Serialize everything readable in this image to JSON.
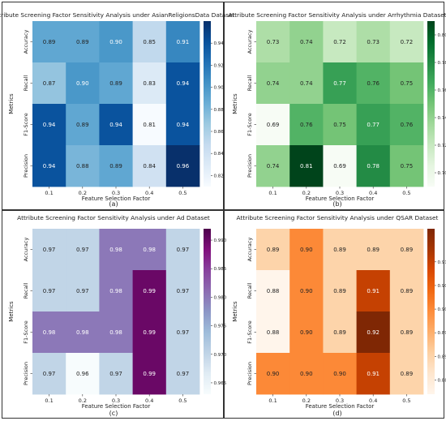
{
  "figure": {
    "captions": [
      "(a)",
      "(b)",
      "(c)",
      "(d)"
    ]
  },
  "chart_data": [
    {
      "type": "heatmap",
      "title": "Attribute Screening Factor Sensitivity Analysis under AsianReligionsData Dataset",
      "xlabel": "Feature Selection Factor",
      "ylabel": "Metrics",
      "x_categories": [
        "0.1",
        "0.2",
        "0.3",
        "0.4",
        "0.5"
      ],
      "y_categories": [
        "Accuracy",
        "Recall",
        "F1-Score",
        "Precision"
      ],
      "values": [
        [
          0.89,
          0.89,
          0.9,
          0.85,
          0.91
        ],
        [
          0.87,
          0.9,
          0.89,
          0.83,
          0.94
        ],
        [
          0.94,
          0.89,
          0.94,
          0.81,
          0.94
        ],
        [
          0.94,
          0.88,
          0.89,
          0.84,
          0.96
        ]
      ],
      "colormap": "Blues",
      "vmin": 0.81,
      "vmax": 0.96,
      "colorbar_ticks": [
        "0.94",
        "0.92",
        "0.90",
        "0.88",
        "0.86",
        "0.84",
        "0.82"
      ]
    },
    {
      "type": "heatmap",
      "title": "Attribute Screening Factor Sensitivity Analysis under Arrhythmia Dataset",
      "xlabel": "Feature Selection Factor",
      "ylabel": "Metrics",
      "x_categories": [
        "0.1",
        "0.2",
        "0.3",
        "0.4",
        "0.5"
      ],
      "y_categories": [
        "Accuracy",
        "Recall",
        "F1-Score",
        "Precision"
      ],
      "values": [
        [
          0.73,
          0.74,
          0.72,
          0.73,
          0.72
        ],
        [
          0.74,
          0.74,
          0.77,
          0.76,
          0.75
        ],
        [
          0.69,
          0.76,
          0.75,
          0.77,
          0.76
        ],
        [
          0.74,
          0.81,
          0.69,
          0.78,
          0.75
        ]
      ],
      "colormap": "Greens",
      "vmin": 0.69,
      "vmax": 0.81,
      "colorbar_ticks": [
        "0.80",
        "0.78",
        "0.76",
        "0.74",
        "0.72",
        "0.70"
      ]
    },
    {
      "type": "heatmap",
      "title": "Attribute Screening Factor Sensitivity Analysis under Ad Dataset",
      "xlabel": "Feature Selection Factor",
      "ylabel": "Metrics",
      "x_categories": [
        "0.1",
        "0.2",
        "0.3",
        "0.4",
        "0.5"
      ],
      "y_categories": [
        "Accuracy",
        "Recall",
        "F1-Score",
        "Precision"
      ],
      "values": [
        [
          0.97,
          0.97,
          0.98,
          0.98,
          0.97
        ],
        [
          0.97,
          0.97,
          0.98,
          0.99,
          0.97
        ],
        [
          0.98,
          0.98,
          0.98,
          0.99,
          0.97
        ],
        [
          0.97,
          0.96,
          0.97,
          0.99,
          0.97
        ]
      ],
      "colormap": "BuPu",
      "vmin": 0.963,
      "vmax": 0.992,
      "colorbar_ticks": [
        "0.990",
        "0.985",
        "0.980",
        "0.975",
        "0.970",
        "0.965"
      ]
    },
    {
      "type": "heatmap",
      "title": "Attribute Screening Factor Sensitivity Analysis under QSAR Dataset",
      "xlabel": "Feature Selection Factor",
      "ylabel": "Metrics",
      "x_categories": [
        "0.1",
        "0.2",
        "0.3",
        "0.4",
        "0.5"
      ],
      "y_categories": [
        "Accuracy",
        "Recall",
        "F1-Score",
        "Precision"
      ],
      "values": [
        [
          0.89,
          0.9,
          0.89,
          0.89,
          0.89
        ],
        [
          0.88,
          0.9,
          0.89,
          0.91,
          0.89
        ],
        [
          0.88,
          0.9,
          0.89,
          0.92,
          0.89
        ],
        [
          0.9,
          0.9,
          0.9,
          0.91,
          0.89
        ]
      ],
      "colormap": "Oranges",
      "vmin": 0.882,
      "vmax": 0.917,
      "colorbar_ticks": [
        "0.910",
        "0.905",
        "0.900",
        "0.895",
        "0.890",
        "0.885"
      ]
    }
  ]
}
